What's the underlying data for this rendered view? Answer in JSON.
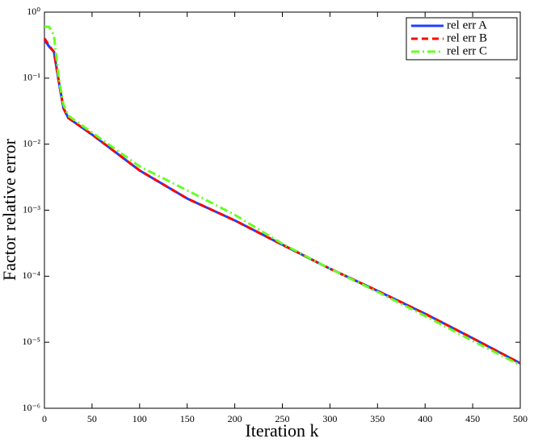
{
  "chart_data": {
    "type": "line",
    "xlabel": "Iteration k",
    "ylabel": "Factor relative error",
    "x": [
      0,
      5,
      10,
      15,
      20,
      25,
      50,
      100,
      150,
      200,
      250,
      300,
      350,
      400,
      450,
      500
    ],
    "series": [
      {
        "name": "rel err A",
        "color": "#1f3fff",
        "dash": "solid",
        "values": [
          0.38,
          0.3,
          0.25,
          0.09,
          0.035,
          0.025,
          0.014,
          0.004,
          0.0015,
          0.0007,
          0.0003,
          0.00013,
          6e-05,
          2.7e-05,
          1.15e-05,
          4.8e-06
        ]
      },
      {
        "name": "rel err B",
        "color": "#ff0000",
        "dash": "dashed",
        "values": [
          0.4,
          0.31,
          0.25,
          0.09,
          0.035,
          0.025,
          0.014,
          0.004,
          0.0015,
          0.0007,
          0.0003,
          0.00013,
          6e-05,
          2.7e-05,
          1.15e-05,
          4.8e-06
        ]
      },
      {
        "name": "rel err C",
        "color": "#66ff22",
        "dash": "dashdot",
        "values": [
          0.6,
          0.6,
          0.45,
          0.1,
          0.04,
          0.027,
          0.015,
          0.0046,
          0.002,
          0.00085,
          0.00031,
          0.00013,
          5.8e-05,
          2.5e-05,
          1.05e-05,
          4.5e-06
        ]
      }
    ],
    "xlim": [
      0,
      500
    ],
    "xticks": [
      0,
      50,
      100,
      150,
      200,
      250,
      300,
      350,
      400,
      450,
      500
    ],
    "ylim": [
      1e-06,
      1
    ],
    "log_y": true,
    "yticks": [
      {
        "value": 1e-06,
        "label": "10⁻⁶"
      },
      {
        "value": 1e-05,
        "label": "10⁻⁵"
      },
      {
        "value": 0.0001,
        "label": "10⁻⁴"
      },
      {
        "value": 0.001,
        "label": "10⁻³"
      },
      {
        "value": 0.01,
        "label": "10⁻²"
      },
      {
        "value": 0.1,
        "label": "10⁻¹"
      },
      {
        "value": 1,
        "label": "10⁰"
      }
    ],
    "legend": "upper right"
  }
}
